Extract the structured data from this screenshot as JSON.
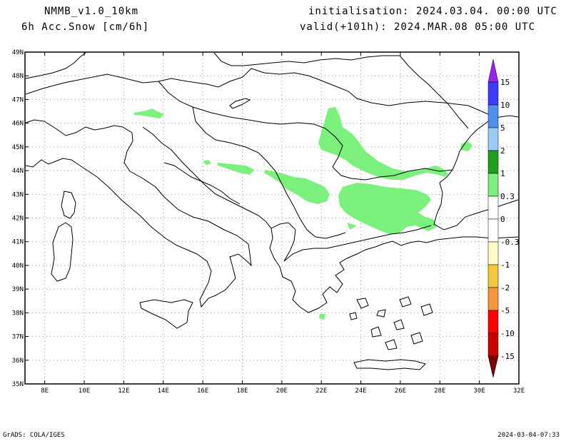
{
  "header": {
    "model": "NMMB_v1.0_10km",
    "variable": "6h Acc.Snow [cm/6h]",
    "initialisation": "initialisation: 2024.03.04.  00:00 UTC",
    "valid": "valid(+101h): 2024.MAR.08 05:00 UTC"
  },
  "map": {
    "lon_range": [
      7,
      32
    ],
    "lat_range": [
      35,
      49
    ],
    "x_ticks": [
      "8E",
      "10E",
      "12E",
      "14E",
      "16E",
      "18E",
      "20E",
      "22E",
      "24E",
      "26E",
      "28E",
      "30E",
      "32E"
    ],
    "y_ticks": [
      "35N",
      "36N",
      "37N",
      "38N",
      "39N",
      "40N",
      "41N",
      "42N",
      "43N",
      "44N",
      "45N",
      "46N",
      "47N",
      "48N",
      "49N"
    ],
    "gridlines": "dotted",
    "snow_color": "#7cf07c"
  },
  "colorbar": {
    "labels": [
      "15",
      "10",
      "5",
      "2",
      "1",
      "0.3",
      "0",
      "-0.3",
      "-1",
      "-2",
      "-5",
      "-10",
      "-15"
    ],
    "segments": [
      "#a020f0",
      "#3c3cff",
      "#4f8ff0",
      "#9ccbf5",
      "#1ea01e",
      "#7cf07c",
      "#ffffff",
      "#ffffff",
      "#fffbc8",
      "#f5c83c",
      "#f5963c",
      "#ff0000",
      "#c80000",
      "#7d0000"
    ]
  },
  "footer": {
    "left": "GrADS: COLA/IGES",
    "right": "2024-03-04-07:33"
  }
}
